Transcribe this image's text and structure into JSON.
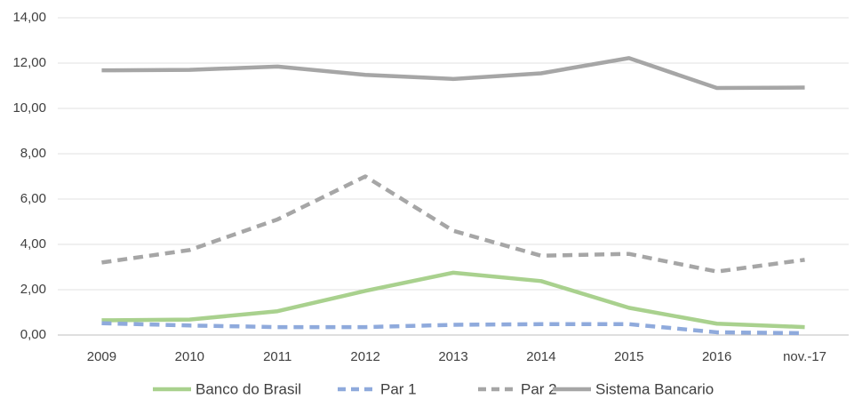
{
  "chart_data": {
    "type": "line",
    "categories": [
      "2009",
      "2010",
      "2011",
      "2012",
      "2013",
      "2014",
      "2015",
      "2016",
      "nov.-17"
    ],
    "series": [
      {
        "name": "Banco do Brasil",
        "color": "#a9d18e",
        "dashed": false,
        "values": [
          0.65,
          0.68,
          1.05,
          1.95,
          2.75,
          2.38,
          1.2,
          0.5,
          0.35
        ]
      },
      {
        "name": "Par 1",
        "color": "#8faadc",
        "dashed": true,
        "values": [
          0.52,
          0.42,
          0.35,
          0.35,
          0.45,
          0.48,
          0.48,
          0.12,
          0.08
        ]
      },
      {
        "name": "Par 2",
        "color": "#a6a6a6",
        "dashed": true,
        "values": [
          3.2,
          3.75,
          5.1,
          7.0,
          4.6,
          3.5,
          3.58,
          2.8,
          3.32
        ]
      },
      {
        "name": "Sistema Bancario",
        "color": "#a6a6a6",
        "dashed": false,
        "values": [
          11.68,
          11.7,
          11.85,
          11.48,
          11.3,
          11.55,
          12.22,
          10.9,
          10.92
        ]
      }
    ],
    "ylim": [
      0,
      14
    ],
    "yticks": [
      {
        "value": 0,
        "label": "0,00"
      },
      {
        "value": 2,
        "label": "2,00"
      },
      {
        "value": 4,
        "label": "4,00"
      },
      {
        "value": 6,
        "label": "6,00"
      },
      {
        "value": 8,
        "label": "8,00"
      },
      {
        "value": 10,
        "label": "10,00"
      },
      {
        "value": 12,
        "label": "12,00"
      },
      {
        "value": 14,
        "label": "14,00"
      }
    ],
    "grid": true,
    "legend": "bottom"
  }
}
